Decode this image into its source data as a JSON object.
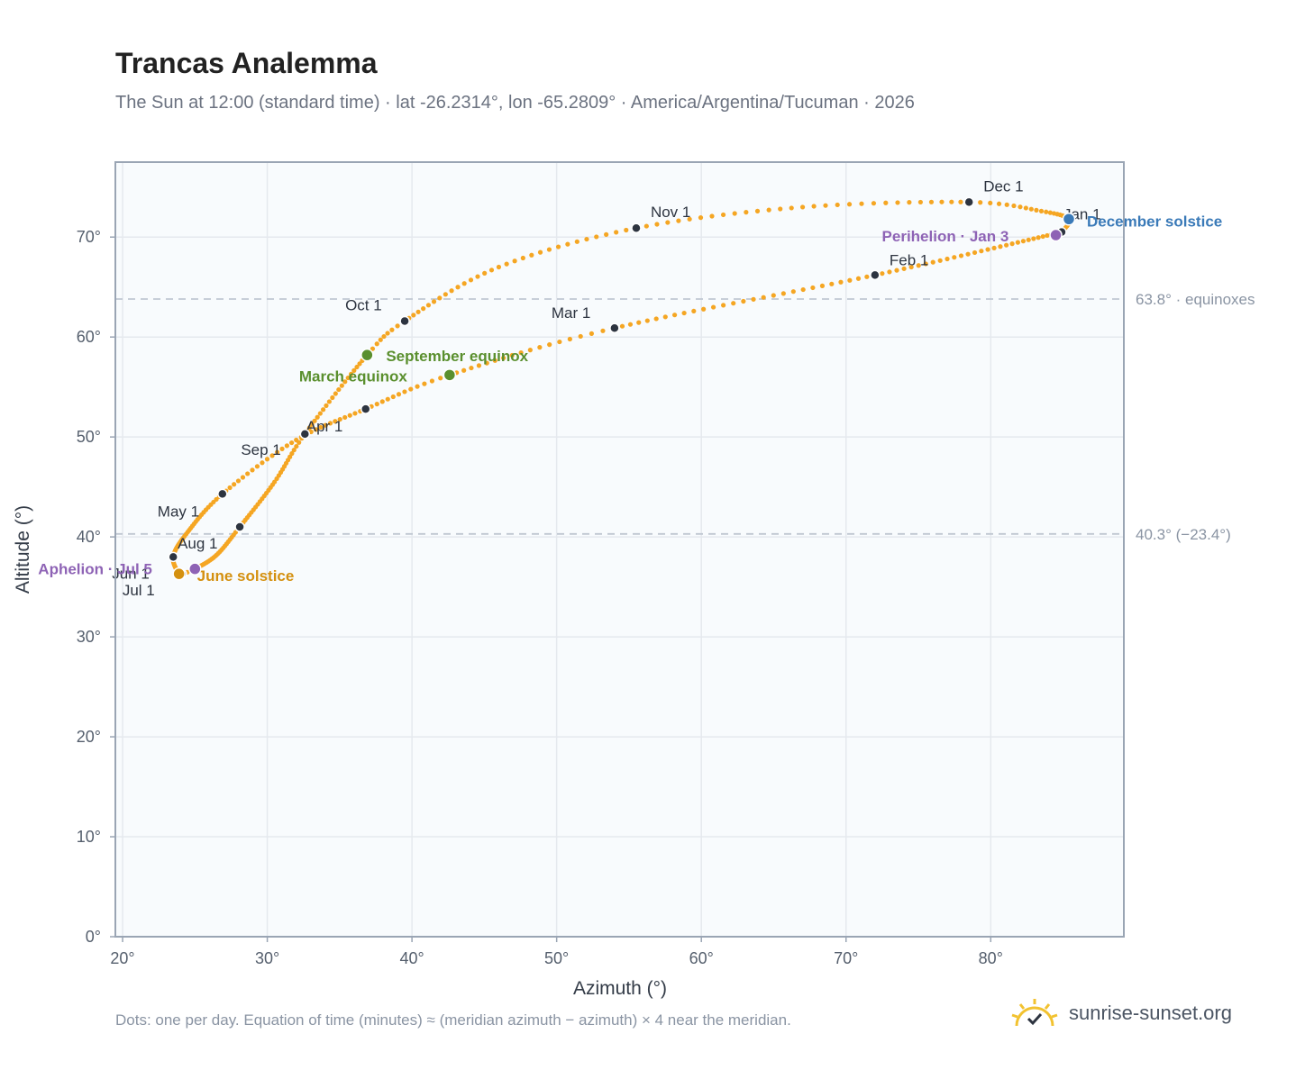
{
  "header": {
    "title": "Trancas Analemma",
    "subtitle": "The Sun at 12:00 (standard time) · lat -26.2314°, lon -65.2809° · America/Argentina/Tucuman · 2026"
  },
  "footer": {
    "note": "Dots: one per day. Equation of time (minutes) ≈ (meridian azimuth − azimuth) × 4 near the meridian.",
    "brand": "sunrise-sunset.org",
    "brand_icon": "sun-logo-icon"
  },
  "colors": {
    "curve": "#f5a623",
    "month_dot": "#2d3440",
    "equinox": "#5a8f2e",
    "june_solstice": "#d4900f",
    "december_solstice": "#3a7ab8",
    "apsis": "#8e63b5",
    "grid": "#e5e9ee",
    "frame": "#9aa5b4",
    "plot_bg": "#f8fbfd",
    "ref_line": "#c0c8d2"
  },
  "chart_data": {
    "type": "scatter",
    "xlabel": "Azimuth (°)",
    "ylabel": "Altitude (°)",
    "xlim": [
      19.5,
      89.2
    ],
    "ylim": [
      0,
      77.5
    ],
    "grid": true,
    "x_ticks": [
      20,
      30,
      40,
      50,
      60,
      70,
      80
    ],
    "x_tick_labels": [
      "20°",
      "30°",
      "40°",
      "50°",
      "60°",
      "70°",
      "80°"
    ],
    "y_ticks": [
      0,
      10,
      20,
      30,
      40,
      50,
      60,
      70
    ],
    "y_tick_labels": [
      "0°",
      "10°",
      "20°",
      "30°",
      "40°",
      "50°",
      "60°",
      "70°"
    ],
    "reference_lines": [
      {
        "y": 63.8,
        "label": "63.8° · equinoxes"
      },
      {
        "y": 40.3,
        "label": "40.3° (−23.4°)"
      }
    ],
    "path_anchors": [
      {
        "day": 1,
        "x": 84.9,
        "y": 70.5
      },
      {
        "day": 32,
        "x": 72.0,
        "y": 66.2
      },
      {
        "day": 60,
        "x": 54.0,
        "y": 60.9
      },
      {
        "day": 78,
        "x": 42.6,
        "y": 56.2
      },
      {
        "day": 91,
        "x": 36.8,
        "y": 52.8
      },
      {
        "day": 105,
        "x": 32.0,
        "y": 49.7
      },
      {
        "day": 121,
        "x": 26.9,
        "y": 44.3
      },
      {
        "day": 138,
        "x": 24.4,
        "y": 40.3
      },
      {
        "day": 152,
        "x": 23.5,
        "y": 38.0
      },
      {
        "day": 172,
        "x": 23.9,
        "y": 36.3
      },
      {
        "day": 182,
        "x": 24.1,
        "y": 36.3
      },
      {
        "day": 186,
        "x": 25.0,
        "y": 36.8
      },
      {
        "day": 200,
        "x": 26.5,
        "y": 38.2
      },
      {
        "day": 213,
        "x": 28.1,
        "y": 41.0
      },
      {
        "day": 230,
        "x": 30.5,
        "y": 45.5
      },
      {
        "day": 244,
        "x": 32.6,
        "y": 50.3
      },
      {
        "day": 266,
        "x": 36.9,
        "y": 58.2
      },
      {
        "day": 274,
        "x": 39.5,
        "y": 61.6
      },
      {
        "day": 290,
        "x": 46.0,
        "y": 67.0
      },
      {
        "day": 305,
        "x": 55.5,
        "y": 70.9
      },
      {
        "day": 320,
        "x": 67.0,
        "y": 73.0
      },
      {
        "day": 335,
        "x": 78.5,
        "y": 73.5
      },
      {
        "day": 345,
        "x": 83.5,
        "y": 72.6
      },
      {
        "day": 355,
        "x": 85.4,
        "y": 71.8
      },
      {
        "day": 365,
        "x": 84.9,
        "y": 70.5
      }
    ],
    "month_markers": [
      {
        "label": "Jan 1",
        "x": 84.9,
        "y": 70.5,
        "dx": 2,
        "dy": -14
      },
      {
        "label": "Feb 1",
        "x": 72.0,
        "y": 66.2,
        "dx": 16,
        "dy": -11
      },
      {
        "label": "Mar 1",
        "x": 54.0,
        "y": 60.9,
        "dx": -70,
        "dy": -11
      },
      {
        "label": "Apr 1",
        "x": 36.8,
        "y": 52.8,
        "dx": -66,
        "dy": 25
      },
      {
        "label": "May 1",
        "x": 26.9,
        "y": 44.3,
        "dx": -72,
        "dy": 25
      },
      {
        "label": "Jun 1",
        "x": 23.5,
        "y": 38.0,
        "dx": -68,
        "dy": 24
      },
      {
        "label": "Jul 1",
        "x": 24.1,
        "y": 36.3,
        "dx": -66,
        "dy": 24
      },
      {
        "label": "Aug 1",
        "x": 28.1,
        "y": 41.0,
        "dx": -69,
        "dy": 24
      },
      {
        "label": "Sep 1",
        "x": 32.6,
        "y": 50.3,
        "dx": -71,
        "dy": 23
      },
      {
        "label": "Oct 1",
        "x": 39.5,
        "y": 61.6,
        "dx": -66,
        "dy": -12
      },
      {
        "label": "Nov 1",
        "x": 55.5,
        "y": 70.9,
        "dx": 16,
        "dy": -12
      },
      {
        "label": "Dec 1",
        "x": 78.5,
        "y": 73.5,
        "dx": 16,
        "dy": -12
      }
    ],
    "annotations": [
      {
        "label": "March equinox",
        "x": 42.6,
        "y": 56.2,
        "color": "#5a8f2e",
        "dx": -167,
        "dy": 7
      },
      {
        "label": "September equinox",
        "x": 36.9,
        "y": 58.2,
        "color": "#5a8f2e",
        "dx": 21,
        "dy": 7
      },
      {
        "label": "June solstice",
        "x": 23.9,
        "y": 36.3,
        "color": "#d4900f",
        "dx": 20,
        "dy": 8
      },
      {
        "label": "December solstice",
        "x": 85.4,
        "y": 71.8,
        "color": "#3a7ab8",
        "dx": 20,
        "dy": 8
      },
      {
        "label": "Aphelion · Jul 5",
        "x": 25.0,
        "y": 36.8,
        "color": "#8e63b5",
        "dx": -174,
        "dy": 6
      },
      {
        "label": "Perihelion · Jan 3",
        "x": 84.5,
        "y": 70.2,
        "color": "#8e63b5",
        "dx": -193,
        "dy": 7
      }
    ]
  }
}
